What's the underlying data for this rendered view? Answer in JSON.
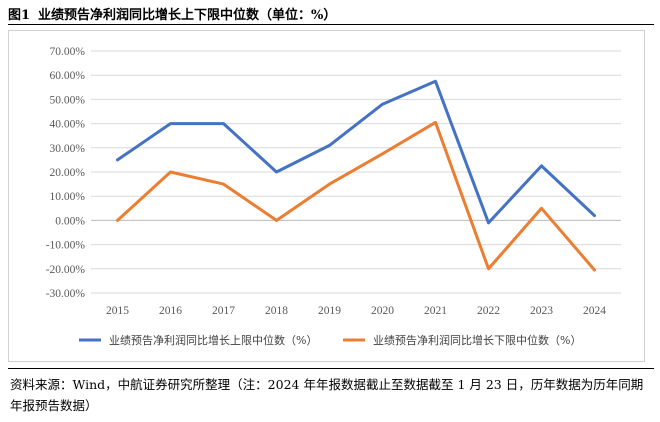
{
  "figure": {
    "number": "图1",
    "title": "业绩预告净利润同比增长上下限中位数（单位：%）"
  },
  "source_note": "资料来源：Wind，中航证券研究所整理（注：2024 年年报数据截止至数据截至 1 月 23 日，历年数据为历年同期年报预告数据）",
  "colors": {
    "upper": "#4472c4",
    "lower": "#ed7d31",
    "grid": "#d9d9d9"
  },
  "chart_data": {
    "type": "line",
    "title": "",
    "xlabel": "",
    "ylabel": "",
    "categories": [
      "2015",
      "2016",
      "2017",
      "2018",
      "2019",
      "2020",
      "2021",
      "2022",
      "2023",
      "2024"
    ],
    "y_ticks": [
      "70.00%",
      "60.00%",
      "50.00%",
      "40.00%",
      "30.00%",
      "20.00%",
      "10.00%",
      "0.00%",
      "-10.00%",
      "-20.00%",
      "-30.00%"
    ],
    "ylim": [
      -30,
      70
    ],
    "grid": true,
    "legend_position": "bottom",
    "series": [
      {
        "name": "业绩预告净利润同比增长上限中位数（%）",
        "color": "#4472c4",
        "values": [
          25,
          40,
          40,
          20,
          31,
          48,
          57.5,
          -1,
          22.5,
          2
        ]
      },
      {
        "name": "业绩预告净利润同比增长下限中位数（%）",
        "color": "#ed7d31",
        "values": [
          0,
          20,
          15,
          0,
          15,
          27.5,
          40.5,
          -20,
          5,
          -20.5
        ]
      }
    ]
  }
}
